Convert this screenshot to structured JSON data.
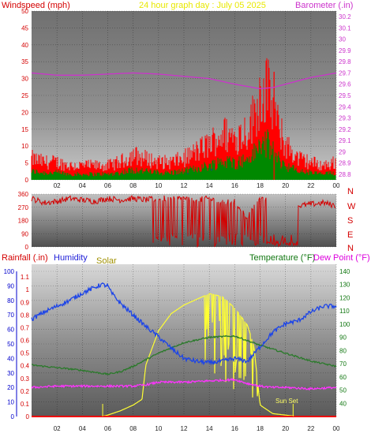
{
  "colors": {
    "wind": "#d40000",
    "barometer": "#cc33cc",
    "title": "#e8e800",
    "rain_axis": "#d40000",
    "humidity": "#1f1fd8",
    "solar": "#a09000",
    "temperature": "#117711",
    "dewpoint": "#dd00dd",
    "direction": "#d40000",
    "axis_tick": "#d40000",
    "hum_tick": "#0000cc",
    "temp_tick": "#117711",
    "gust": "#ff0000",
    "avg_wind": "#008800",
    "min_wind": "#2020c0",
    "solar_line": "#ffff33",
    "humidity_line": "#1c44e8",
    "temp_line": "#2a7a2a",
    "dew_line": "#ff33ff",
    "rain_line": "#ee0000"
  },
  "top_panel": {
    "left_title": "Windspeed (mph)",
    "center_title": "24 hour graph day : July 05 2025",
    "right_title": "Barometer (.in)"
  },
  "middle_panel": {
    "direction_letters": [
      "N",
      "W",
      "S",
      "E",
      "N"
    ]
  },
  "bottom_panel": {
    "rain_title": "Rainfall (.in)",
    "humidity_title": "Humidity",
    "solar_title": "Solar",
    "temp_title": "Temperature (°F)",
    "dew_title": "Dew Point (°F)",
    "annotation": "Sun Set"
  },
  "chart_data": [
    {
      "type": "line",
      "title": "24 hour graph day : July 05 2025",
      "x_ticks": [
        "02",
        "04",
        "06",
        "08",
        "10",
        "12",
        "14",
        "16",
        "18",
        "20",
        "22",
        "00"
      ],
      "y_left": {
        "label": "Windspeed (mph)",
        "ticks": [
          0,
          5,
          10,
          15,
          20,
          25,
          30,
          35,
          40,
          45,
          50
        ],
        "ylim": [
          0,
          50
        ]
      },
      "y_right": {
        "label": "Barometer (.in)",
        "ticks": [
          "28.8",
          "28.9",
          "29",
          "29.1",
          "29.2",
          "29.3",
          "29.4",
          "29.5",
          "29.6",
          "29.7",
          "29.8",
          "29.9",
          "30",
          "30.1",
          "30.2"
        ],
        "ylim": [
          28.75,
          30.25
        ]
      },
      "series": [
        {
          "name": "Windspeed (mph)",
          "x_hours": [
            0,
            1,
            2,
            3,
            4,
            5,
            6,
            7,
            8,
            9,
            10,
            11,
            12,
            13,
            14,
            15,
            16,
            17,
            17.5,
            18,
            18.5,
            19,
            19.5,
            20,
            21,
            22,
            23,
            24
          ],
          "values": [
            6,
            5,
            5,
            4,
            4,
            4,
            4,
            5,
            7,
            6,
            5,
            5,
            6,
            8,
            10,
            13,
            12,
            14,
            18,
            24,
            26,
            20,
            14,
            10,
            6,
            5,
            4,
            5
          ]
        },
        {
          "name": "Barometer (.in)",
          "x_hours": [
            0,
            2,
            4,
            6,
            8,
            10,
            12,
            14,
            16,
            17,
            18,
            19,
            20,
            22,
            24
          ],
          "values": [
            29.7,
            29.68,
            29.68,
            29.69,
            29.7,
            29.69,
            29.67,
            29.65,
            29.6,
            29.58,
            29.56,
            29.57,
            29.6,
            29.66,
            29.7
          ]
        }
      ]
    },
    {
      "type": "scatter",
      "x_ticks": [
        "02",
        "04",
        "06",
        "08",
        "10",
        "12",
        "14",
        "16",
        "18",
        "20",
        "22",
        "00"
      ],
      "y_left": {
        "ticks": [
          0,
          90,
          180,
          270,
          360
        ],
        "ylim": [
          0,
          360
        ]
      },
      "y_right": {
        "ticks": [
          "N",
          "W",
          "S",
          "E",
          "N"
        ]
      },
      "series": [
        {
          "name": "wind direction",
          "x_hours": [
            0,
            1,
            2,
            3,
            4,
            5,
            6,
            7,
            8,
            9,
            10,
            11,
            12,
            13,
            14,
            15,
            16,
            17,
            18,
            19,
            20,
            21,
            22,
            23,
            24
          ],
          "values": [
            330,
            300,
            310,
            330,
            320,
            310,
            330,
            320,
            330,
            320,
            330,
            330,
            330,
            320,
            330,
            300,
            310,
            200,
            330,
            330,
            300,
            280,
            290,
            300,
            280
          ]
        }
      ]
    },
    {
      "type": "line",
      "x_ticks": [
        "02",
        "04",
        "06",
        "08",
        "10",
        "12",
        "14",
        "16",
        "18",
        "20",
        "22",
        "00"
      ],
      "y_rain": {
        "label": "Rainfall (.in)",
        "ticks": [
          "0",
          "0.1",
          "0.2",
          "0.3",
          "0.4",
          "0.5",
          "0.6",
          "0.7",
          "0.8",
          "0.9",
          "1",
          "1.1"
        ],
        "ylim": [
          0,
          1.2
        ]
      },
      "y_humidity": {
        "label": "Humidity",
        "ticks": [
          0,
          10,
          20,
          30,
          40,
          50,
          60,
          70,
          80,
          90,
          100
        ],
        "ylim": [
          0,
          100
        ]
      },
      "y_temp": {
        "label": "Temperature (°F)",
        "ticks": [
          40,
          50,
          60,
          70,
          80,
          90,
          100,
          110,
          120,
          130,
          140
        ],
        "ylim": [
          30,
          140
        ]
      },
      "series": [
        {
          "name": "Humidity",
          "x_hours": [
            0,
            1,
            2,
            3,
            4,
            5,
            5.5,
            6,
            6.3,
            7,
            8,
            9,
            10,
            11,
            12,
            13,
            14,
            15,
            16,
            17,
            18,
            19,
            20,
            21,
            22,
            23,
            24
          ],
          "values": [
            67,
            72,
            76,
            80,
            85,
            89,
            91,
            90,
            85,
            78,
            70,
            62,
            55,
            47,
            40,
            38,
            37,
            38,
            40,
            38,
            48,
            58,
            64,
            66,
            72,
            76,
            76
          ]
        },
        {
          "name": "Solar",
          "x_hours": [
            5.5,
            6,
            7,
            8,
            8.7,
            9,
            10,
            11,
            12,
            13,
            13.5,
            14,
            15,
            16,
            17,
            17.5,
            18,
            19,
            20,
            21
          ],
          "values": [
            0,
            5,
            20,
            40,
            60,
            180,
            300,
            360,
            390,
            410,
            420,
            430,
            420,
            380,
            320,
            250,
            40,
            10,
            5,
            0
          ]
        },
        {
          "name": "Temperature (°F)",
          "x_hours": [
            0,
            2,
            4,
            6,
            7,
            8,
            10,
            12,
            14,
            16,
            18,
            20,
            22,
            24
          ],
          "values": [
            69,
            67,
            65,
            62,
            64,
            68,
            78,
            86,
            90,
            91,
            84,
            78,
            72,
            68
          ]
        },
        {
          "name": "Dew Point (°F)",
          "x_hours": [
            0,
            2,
            4,
            6,
            8,
            9,
            10,
            12,
            14,
            16,
            17,
            18,
            19,
            20,
            22,
            24
          ],
          "values": [
            52,
            53,
            53,
            53,
            53,
            54,
            56,
            56,
            57,
            58,
            55,
            53,
            52,
            52,
            51,
            52
          ]
        },
        {
          "name": "Rainfall (.in)",
          "x_hours": [
            0,
            24
          ],
          "values": [
            0,
            0
          ]
        }
      ]
    }
  ]
}
